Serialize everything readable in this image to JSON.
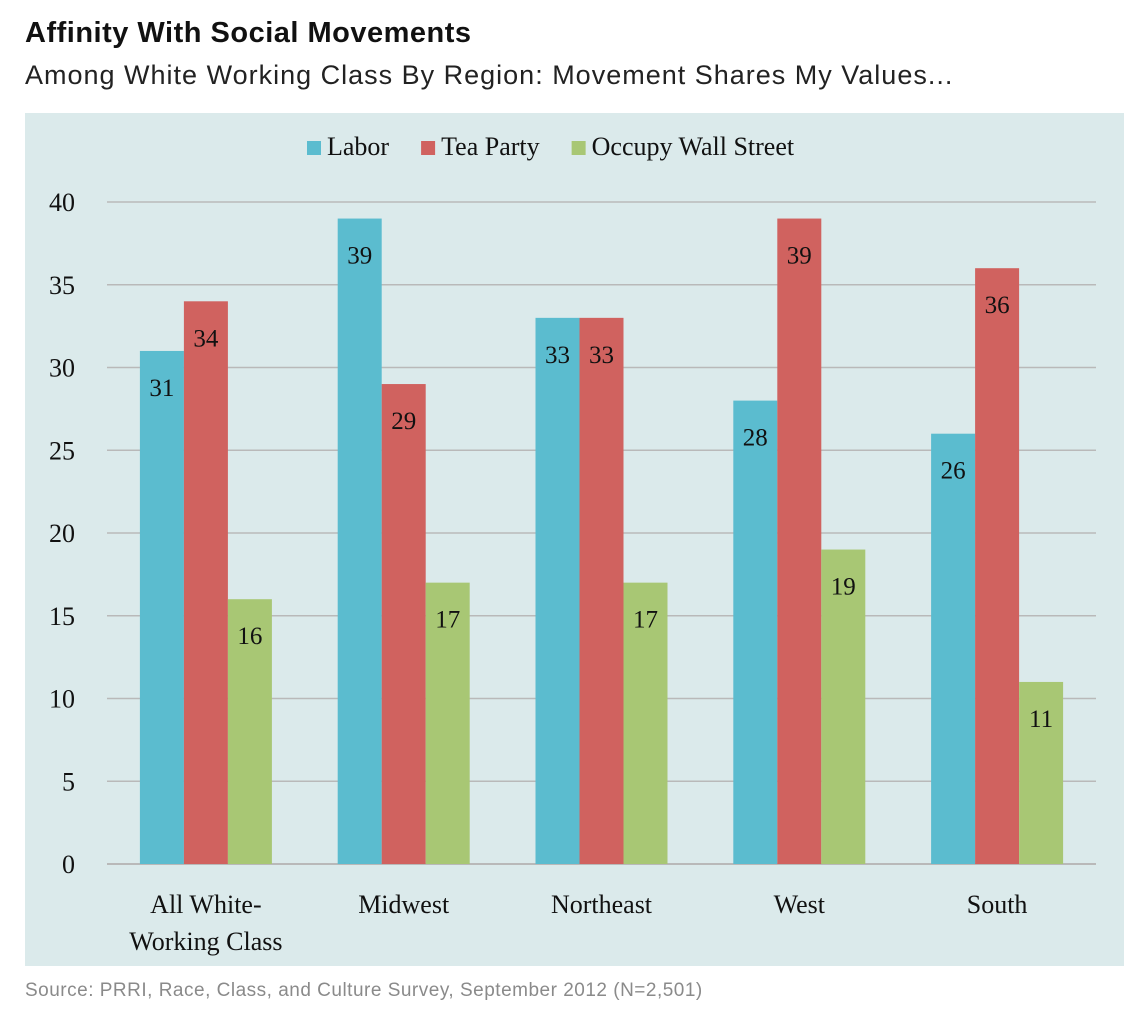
{
  "header": {
    "title": "Affinity With Social Movements",
    "subtitle": "Among White Working Class By Region: Movement Shares My Values..."
  },
  "footer": {
    "source": "Source: PRRI, Race, Class, and Culture Survey, September 2012 (N=2,501)"
  },
  "colors": {
    "background": "#dbeaeb",
    "grid": "#b9b9b9",
    "text": "#111111"
  },
  "chart_data": {
    "type": "bar",
    "title": "Affinity With Social Movements",
    "subtitle": "Among White Working Class By Region: Movement Shares My Values...",
    "categories": [
      [
        "All White-",
        "Working Class"
      ],
      [
        "Midwest"
      ],
      [
        "Northeast"
      ],
      [
        "West"
      ],
      [
        "South"
      ]
    ],
    "series": [
      {
        "name": "Labor",
        "color": "#5bbccf",
        "values": [
          31,
          39,
          33,
          28,
          26
        ]
      },
      {
        "name": "Tea Party",
        "color": "#d0625f",
        "values": [
          34,
          29,
          33,
          39,
          36
        ]
      },
      {
        "name": "Occupy Wall Street",
        "color": "#a8c774",
        "values": [
          16,
          17,
          17,
          19,
          11
        ]
      }
    ],
    "ylim": [
      0,
      40
    ],
    "yticks": [
      "0",
      "5",
      "10",
      "15",
      "20",
      "25",
      "30",
      "35",
      "40"
    ],
    "grid": true,
    "legend_position": "top-center",
    "data_labels": true
  }
}
